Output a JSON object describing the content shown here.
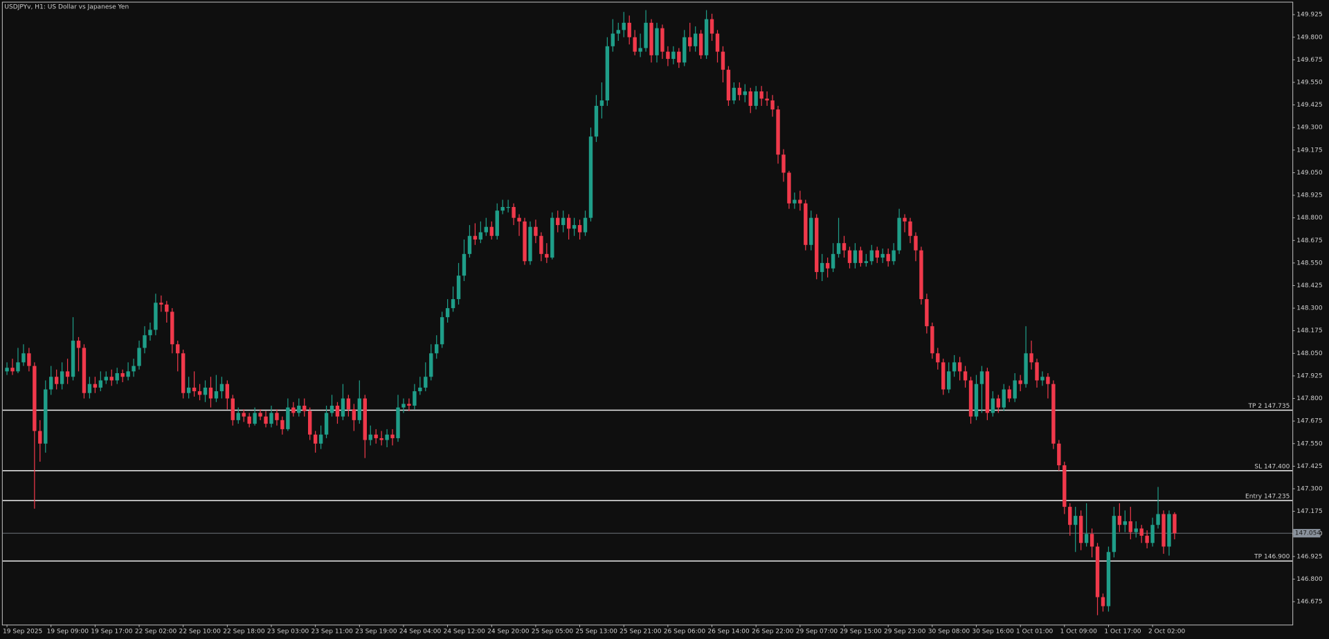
{
  "chart_data": {
    "type": "candlestick",
    "title": "USDJPYv, H1:  US Dollar vs Japanese Yen",
    "up_color": "#1f9e89",
    "down_color": "#f0394b",
    "categories": [
      "19 Sep 2025",
      null,
      null,
      null,
      null,
      null,
      null,
      null,
      "19 Sep 09:00",
      null,
      null,
      null,
      null,
      null,
      null,
      null,
      "19 Sep 17:00",
      null,
      null,
      null,
      null,
      null,
      null,
      null,
      "22 Sep 02:00",
      null,
      null,
      null,
      null,
      null,
      null,
      null,
      "22 Sep 10:00",
      null,
      null,
      null,
      null,
      null,
      null,
      null,
      "22 Sep 18:00",
      null,
      null,
      null,
      null,
      null,
      null,
      null,
      "23 Sep 03:00",
      null,
      null,
      null,
      null,
      null,
      null,
      null,
      "23 Sep 11:00",
      null,
      null,
      null,
      null,
      null,
      null,
      null,
      "23 Sep 19:00",
      null,
      null,
      null,
      null,
      null,
      null,
      null,
      "24 Sep 04:00",
      null,
      null,
      null,
      null,
      null,
      null,
      null,
      "24 Sep 12:00",
      null,
      null,
      null,
      null,
      null,
      null,
      null,
      "24 Sep 20:00",
      null,
      null,
      null,
      null,
      null,
      null,
      null,
      "25 Sep 05:00",
      null,
      null,
      null,
      null,
      null,
      null,
      null,
      "25 Sep 13:00",
      null,
      null,
      null,
      null,
      null,
      null,
      null,
      "25 Sep 21:00",
      null,
      null,
      null,
      null,
      null,
      null,
      null,
      "26 Sep 06:00",
      null,
      null,
      null,
      null,
      null,
      null,
      null,
      "26 Sep 14:00",
      null,
      null,
      null,
      null,
      null,
      null,
      null,
      "26 Sep 22:00",
      null,
      null,
      null,
      null,
      null,
      null,
      null,
      "29 Sep 07:00",
      null,
      null,
      null,
      null,
      null,
      null,
      null,
      "29 Sep 15:00",
      null,
      null,
      null,
      null,
      null,
      null,
      null,
      "29 Sep 23:00",
      null,
      null,
      null,
      null,
      null,
      null,
      null,
      "30 Sep 08:00",
      null,
      null,
      null,
      null,
      null,
      null,
      null,
      "30 Sep 16:00",
      null,
      null,
      null,
      null,
      null,
      null,
      null,
      "1 Oct 01:00",
      null,
      null,
      null,
      null,
      null,
      null,
      null,
      "1 Oct 09:00",
      null,
      null,
      null,
      null,
      null,
      null,
      null,
      "1 Oct 17:00",
      null,
      null,
      null,
      null,
      null,
      null,
      null,
      "2 Oct 02:00",
      null,
      null,
      null,
      null
    ],
    "open": [
      147.95,
      147.97,
      147.95,
      148.0,
      148.05,
      147.98,
      147.62,
      147.55,
      147.85,
      147.92,
      147.88,
      147.95,
      147.92,
      148.12,
      148.08,
      147.83,
      147.88,
      147.86,
      147.9,
      147.92,
      147.9,
      147.94,
      147.92,
      147.95,
      147.98,
      148.08,
      148.15,
      148.18,
      148.33,
      148.32,
      148.28,
      148.1,
      148.05,
      147.83,
      147.86,
      147.84,
      147.82,
      147.86,
      147.8,
      147.84,
      147.88,
      147.8,
      147.68,
      147.72,
      147.7,
      147.66,
      147.72,
      147.7,
      147.66,
      147.72,
      147.68,
      147.63,
      147.75,
      147.72,
      147.76,
      147.73,
      147.6,
      147.55,
      147.6,
      147.72,
      147.76,
      147.7,
      147.8,
      147.74,
      147.68,
      147.8,
      147.57,
      147.6,
      147.58,
      147.57,
      147.6,
      147.58,
      147.75,
      147.77,
      147.76,
      147.84,
      147.86,
      147.92,
      148.05,
      148.1,
      148.25,
      148.3,
      148.35,
      148.48,
      148.6,
      148.7,
      148.68,
      148.72,
      148.75,
      148.7,
      148.84,
      148.86,
      148.86,
      148.8,
      148.78,
      148.56,
      148.75,
      148.7,
      148.6,
      148.58,
      148.8,
      148.76,
      148.8,
      148.74,
      148.76,
      148.72,
      148.8,
      149.25,
      149.42,
      149.45,
      149.75,
      149.82,
      149.84,
      149.88,
      149.8,
      149.72,
      149.74,
      149.88,
      149.7,
      149.85,
      149.72,
      149.68,
      149.72,
      149.66,
      149.8,
      149.75,
      149.82,
      149.7,
      149.9,
      149.82,
      149.72,
      149.62,
      149.45,
      149.52,
      149.48,
      149.5,
      149.42,
      149.5,
      149.46,
      149.45,
      149.4,
      149.15,
      149.05,
      148.88,
      148.9,
      148.88,
      148.65,
      148.8,
      148.5,
      148.55,
      148.52,
      148.6,
      148.66,
      148.62,
      148.55,
      148.62,
      148.55,
      148.56,
      148.62,
      148.58,
      148.6,
      148.56,
      148.62,
      148.8,
      148.78,
      148.7,
      148.62,
      148.35,
      148.2,
      148.05,
      148.0,
      147.85,
      147.95,
      148.0,
      147.95,
      147.9,
      147.7,
      147.88,
      147.95,
      147.72,
      147.8,
      147.75,
      147.85,
      147.8,
      147.9,
      147.88,
      148.05,
      148.0,
      147.9,
      147.92,
      147.88,
      147.55,
      147.43,
      147.2,
      147.1,
      147.15,
      147.0,
      147.05,
      146.98,
      146.7,
      146.65,
      146.95,
      147.15,
      147.1,
      147.12,
      147.06,
      147.08,
      147.04,
      147.0,
      147.1,
      147.16,
      146.98,
      147.16
    ],
    "high": [
      148.0,
      148.02,
      148.08,
      148.1,
      148.08,
      148.0,
      147.68,
      147.9,
      147.98,
      147.96,
      148.0,
      148.02,
      148.25,
      148.14,
      148.1,
      147.92,
      147.92,
      147.95,
      147.95,
      147.96,
      147.97,
      147.96,
      148.0,
      148.02,
      148.12,
      148.2,
      148.22,
      148.38,
      148.37,
      148.34,
      148.3,
      148.12,
      148.07,
      147.92,
      147.95,
      147.88,
      147.9,
      147.92,
      147.93,
      147.92,
      147.9,
      147.82,
      147.75,
      147.74,
      147.72,
      147.75,
      147.74,
      147.73,
      147.76,
      147.74,
      147.7,
      147.8,
      147.78,
      147.8,
      147.8,
      147.75,
      147.62,
      147.65,
      147.76,
      147.82,
      147.78,
      147.88,
      147.82,
      147.77,
      147.9,
      147.82,
      147.65,
      147.63,
      147.62,
      147.63,
      147.63,
      147.82,
      147.8,
      147.8,
      147.88,
      147.92,
      148.0,
      148.1,
      148.15,
      148.28,
      148.35,
      148.42,
      148.55,
      148.68,
      148.76,
      148.77,
      148.78,
      148.8,
      148.78,
      148.88,
      148.9,
      148.9,
      148.88,
      148.82,
      148.8,
      148.78,
      148.79,
      148.72,
      148.66,
      148.83,
      148.84,
      148.84,
      148.82,
      148.8,
      148.79,
      148.84,
      149.3,
      149.48,
      149.55,
      149.8,
      149.9,
      149.88,
      149.94,
      149.92,
      149.84,
      149.82,
      149.95,
      149.9,
      149.88,
      149.87,
      149.75,
      149.75,
      149.74,
      149.84,
      149.88,
      149.86,
      149.84,
      149.95,
      149.93,
      149.84,
      149.75,
      149.64,
      149.55,
      149.55,
      149.54,
      149.52,
      149.53,
      149.53,
      149.5,
      149.48,
      149.42,
      149.18,
      149.06,
      148.94,
      148.95,
      148.9,
      148.84,
      148.82,
      148.6,
      148.58,
      148.66,
      148.8,
      148.7,
      148.64,
      148.66,
      148.64,
      148.6,
      148.65,
      148.64,
      148.63,
      148.63,
      148.66,
      148.85,
      148.82,
      148.8,
      148.72,
      148.64,
      148.38,
      148.22,
      148.08,
      148.02,
      148.0,
      148.04,
      148.03,
      147.98,
      147.92,
      147.93,
      147.98,
      147.97,
      147.84,
      147.82,
      147.88,
      147.87,
      147.94,
      147.93,
      148.2,
      148.12,
      148.02,
      147.95,
      147.94,
      147.9,
      147.57,
      147.45,
      147.22,
      147.2,
      147.18,
      147.22,
      147.08,
      147.0,
      146.72,
      146.98,
      147.2,
      147.22,
      147.18,
      147.2,
      147.12,
      147.1,
      147.07,
      147.14,
      147.31,
      147.18,
      147.18,
      147.17
    ],
    "low": [
      147.93,
      147.93,
      147.94,
      147.98,
      147.95,
      147.19,
      147.45,
      147.5,
      147.82,
      147.85,
      147.85,
      147.88,
      147.9,
      147.95,
      147.8,
      147.8,
      147.83,
      147.84,
      147.88,
      147.87,
      147.88,
      147.89,
      147.9,
      147.92,
      147.96,
      148.05,
      148.12,
      148.15,
      148.28,
      148.22,
      148.05,
      147.95,
      147.8,
      147.8,
      147.81,
      147.79,
      147.78,
      147.75,
      147.78,
      147.8,
      147.74,
      147.65,
      147.66,
      147.67,
      147.64,
      147.65,
      147.68,
      147.64,
      147.64,
      147.65,
      147.6,
      147.62,
      147.7,
      147.7,
      147.7,
      147.57,
      147.5,
      147.52,
      147.58,
      147.7,
      147.66,
      147.68,
      147.7,
      147.62,
      147.66,
      147.47,
      147.54,
      147.55,
      147.54,
      147.53,
      147.54,
      147.56,
      147.72,
      147.73,
      147.74,
      147.82,
      147.84,
      147.9,
      148.02,
      148.08,
      148.22,
      148.28,
      148.32,
      148.45,
      148.58,
      148.65,
      148.66,
      148.7,
      148.68,
      148.68,
      148.82,
      148.83,
      148.76,
      148.7,
      148.54,
      148.54,
      148.66,
      148.56,
      148.55,
      148.57,
      148.72,
      148.72,
      148.68,
      148.7,
      148.68,
      148.7,
      148.78,
      149.22,
      149.35,
      149.42,
      149.72,
      149.78,
      149.8,
      149.76,
      149.7,
      149.69,
      149.72,
      149.66,
      149.66,
      149.68,
      149.64,
      149.65,
      149.63,
      149.64,
      149.72,
      149.72,
      149.68,
      149.68,
      149.78,
      149.66,
      149.55,
      149.42,
      149.43,
      149.45,
      149.44,
      149.38,
      149.4,
      149.42,
      149.42,
      149.36,
      149.1,
      149.0,
      148.85,
      148.85,
      148.84,
      148.62,
      148.62,
      148.46,
      148.45,
      148.47,
      148.5,
      148.58,
      148.58,
      148.52,
      148.52,
      148.53,
      148.53,
      148.54,
      148.55,
      148.55,
      148.53,
      148.54,
      148.6,
      148.72,
      148.66,
      148.56,
      148.32,
      148.16,
      148.02,
      147.96,
      147.82,
      147.83,
      147.92,
      147.9,
      147.86,
      147.66,
      147.68,
      147.72,
      147.68,
      147.7,
      147.72,
      147.73,
      147.78,
      147.78,
      147.84,
      147.86,
      147.96,
      147.86,
      147.87,
      147.8,
      147.52,
      147.4,
      147.16,
      147.04,
      146.95,
      146.96,
      146.98,
      146.92,
      146.6,
      146.62,
      146.62,
      146.92,
      147.06,
      147.06,
      147.02,
      147.03,
      147.0,
      146.97,
      146.98,
      147.08,
      146.94,
      146.93,
      147.02
    ],
    "close": [
      147.97,
      147.95,
      148.0,
      148.05,
      147.98,
      147.62,
      147.55,
      147.85,
      147.92,
      147.88,
      147.95,
      147.92,
      148.12,
      148.08,
      147.83,
      147.88,
      147.86,
      147.9,
      147.92,
      147.9,
      147.94,
      147.92,
      147.95,
      147.98,
      148.08,
      148.15,
      148.18,
      148.33,
      148.32,
      148.28,
      148.1,
      148.05,
      147.83,
      147.86,
      147.84,
      147.82,
      147.86,
      147.8,
      147.84,
      147.88,
      147.8,
      147.68,
      147.72,
      147.7,
      147.66,
      147.72,
      147.7,
      147.66,
      147.72,
      147.68,
      147.63,
      147.75,
      147.72,
      147.76,
      147.73,
      147.6,
      147.55,
      147.6,
      147.72,
      147.76,
      147.7,
      147.8,
      147.74,
      147.68,
      147.8,
      147.57,
      147.6,
      147.58,
      147.57,
      147.6,
      147.58,
      147.75,
      147.77,
      147.76,
      147.84,
      147.86,
      147.92,
      148.05,
      148.1,
      148.25,
      148.3,
      148.35,
      148.48,
      148.6,
      148.7,
      148.68,
      148.72,
      148.75,
      148.7,
      148.84,
      148.86,
      148.86,
      148.8,
      148.78,
      148.56,
      148.75,
      148.7,
      148.6,
      148.58,
      148.8,
      148.76,
      148.8,
      148.74,
      148.76,
      148.72,
      148.8,
      149.25,
      149.42,
      149.45,
      149.75,
      149.82,
      149.84,
      149.88,
      149.8,
      149.72,
      149.74,
      149.88,
      149.7,
      149.85,
      149.72,
      149.68,
      149.72,
      149.66,
      149.8,
      149.75,
      149.82,
      149.7,
      149.9,
      149.82,
      149.72,
      149.62,
      149.45,
      149.52,
      149.48,
      149.5,
      149.42,
      149.5,
      149.46,
      149.45,
      149.4,
      149.15,
      149.05,
      148.88,
      148.9,
      148.88,
      148.65,
      148.8,
      148.5,
      148.55,
      148.52,
      148.6,
      148.66,
      148.62,
      148.55,
      148.62,
      148.55,
      148.56,
      148.62,
      148.58,
      148.6,
      148.56,
      148.62,
      148.8,
      148.78,
      148.7,
      148.62,
      148.35,
      148.2,
      148.05,
      148.0,
      147.85,
      147.95,
      148.0,
      147.95,
      147.9,
      147.7,
      147.88,
      147.95,
      147.72,
      147.8,
      147.75,
      147.85,
      147.8,
      147.9,
      147.88,
      148.05,
      148.0,
      147.9,
      147.92,
      147.88,
      147.55,
      147.43,
      147.2,
      147.1,
      147.15,
      147.0,
      147.05,
      146.98,
      146.7,
      146.65,
      146.95,
      147.15,
      147.1,
      147.12,
      147.06,
      147.08,
      147.04,
      147.0,
      147.1,
      147.16,
      146.98,
      147.16,
      147.054
    ],
    "ylim": [
      146.548,
      149.992
    ],
    "yticks": [
      146.675,
      {
        "value": 146.8,
        "label": "146.800"
      },
      146.925,
      {
        "value": 147.05,
        "label": "147.050"
      },
      147.175,
      {
        "value": 147.3,
        "label": "147.300"
      },
      147.425,
      {
        "value": 147.55,
        "label": "147.550"
      },
      147.675,
      {
        "value": 147.8,
        "label": "147.800"
      },
      147.925,
      {
        "value": 148.05,
        "label": "148.050"
      },
      148.175,
      {
        "value": 148.3,
        "label": "148.300"
      },
      148.425,
      {
        "value": 148.55,
        "label": "148.550"
      },
      148.675,
      {
        "value": 148.8,
        "label": "148.800"
      },
      148.925,
      {
        "value": 149.05,
        "label": "149.050"
      },
      149.175,
      {
        "value": 149.3,
        "label": "149.300"
      },
      149.425,
      {
        "value": 149.55,
        "label": "149.550"
      },
      149.675,
      {
        "value": 149.8,
        "label": "149.800"
      },
      149.925
    ],
    "levels": [
      {
        "label": "TP 2 147.735",
        "value": 147.735
      },
      {
        "label": "SL 147.400",
        "value": 147.4
      },
      {
        "label": "Entry 147.235",
        "value": 147.235
      },
      {
        "label": "TP 146.900",
        "value": 146.9
      }
    ],
    "current_price": 147.054
  }
}
